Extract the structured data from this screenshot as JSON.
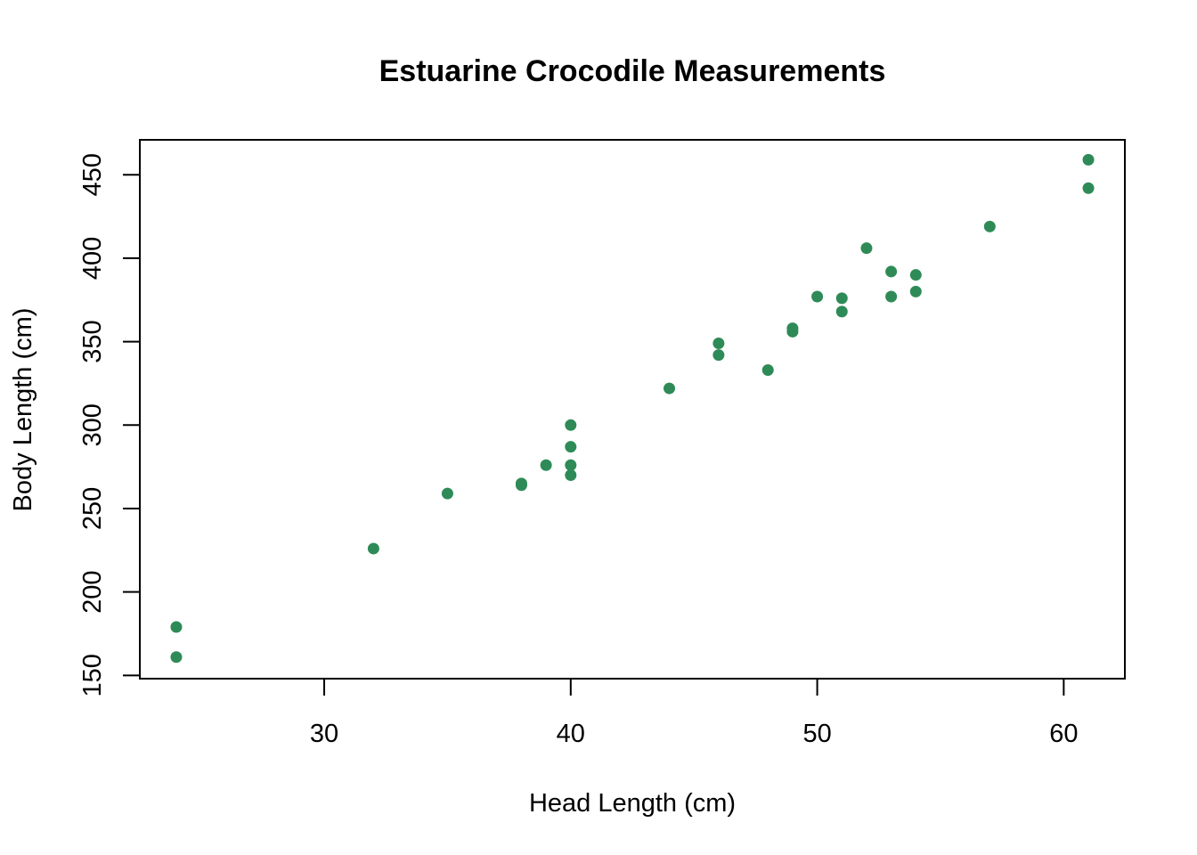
{
  "chart_data": {
    "type": "scatter",
    "title": "Estuarine Crocodile Measurements",
    "xlabel": "Head Length (cm)",
    "ylabel": "Body Length (cm)",
    "xlim": [
      22.52,
      62.48
    ],
    "ylim": [
      148.06,
      470.94
    ],
    "xticks": [
      30,
      40,
      50,
      60
    ],
    "yticks": [
      150,
      200,
      250,
      300,
      350,
      400,
      450
    ],
    "grid": false,
    "legend": "none",
    "marker_color": "#2E8B57",
    "points": [
      {
        "x": 24,
        "y": 179
      },
      {
        "x": 24,
        "y": 161
      },
      {
        "x": 32,
        "y": 226
      },
      {
        "x": 35,
        "y": 259
      },
      {
        "x": 38,
        "y": 264
      },
      {
        "x": 38,
        "y": 265
      },
      {
        "x": 39,
        "y": 276
      },
      {
        "x": 40,
        "y": 270
      },
      {
        "x": 40,
        "y": 276
      },
      {
        "x": 40,
        "y": 287
      },
      {
        "x": 40,
        "y": 300
      },
      {
        "x": 44,
        "y": 322
      },
      {
        "x": 46,
        "y": 342
      },
      {
        "x": 46,
        "y": 349
      },
      {
        "x": 48,
        "y": 333
      },
      {
        "x": 49,
        "y": 356
      },
      {
        "x": 49,
        "y": 358
      },
      {
        "x": 50,
        "y": 377
      },
      {
        "x": 51,
        "y": 368
      },
      {
        "x": 51,
        "y": 376
      },
      {
        "x": 52,
        "y": 406
      },
      {
        "x": 53,
        "y": 377
      },
      {
        "x": 53,
        "y": 392
      },
      {
        "x": 54,
        "y": 380
      },
      {
        "x": 54,
        "y": 390
      },
      {
        "x": 57,
        "y": 419
      },
      {
        "x": 61,
        "y": 442
      },
      {
        "x": 61,
        "y": 459
      }
    ]
  }
}
